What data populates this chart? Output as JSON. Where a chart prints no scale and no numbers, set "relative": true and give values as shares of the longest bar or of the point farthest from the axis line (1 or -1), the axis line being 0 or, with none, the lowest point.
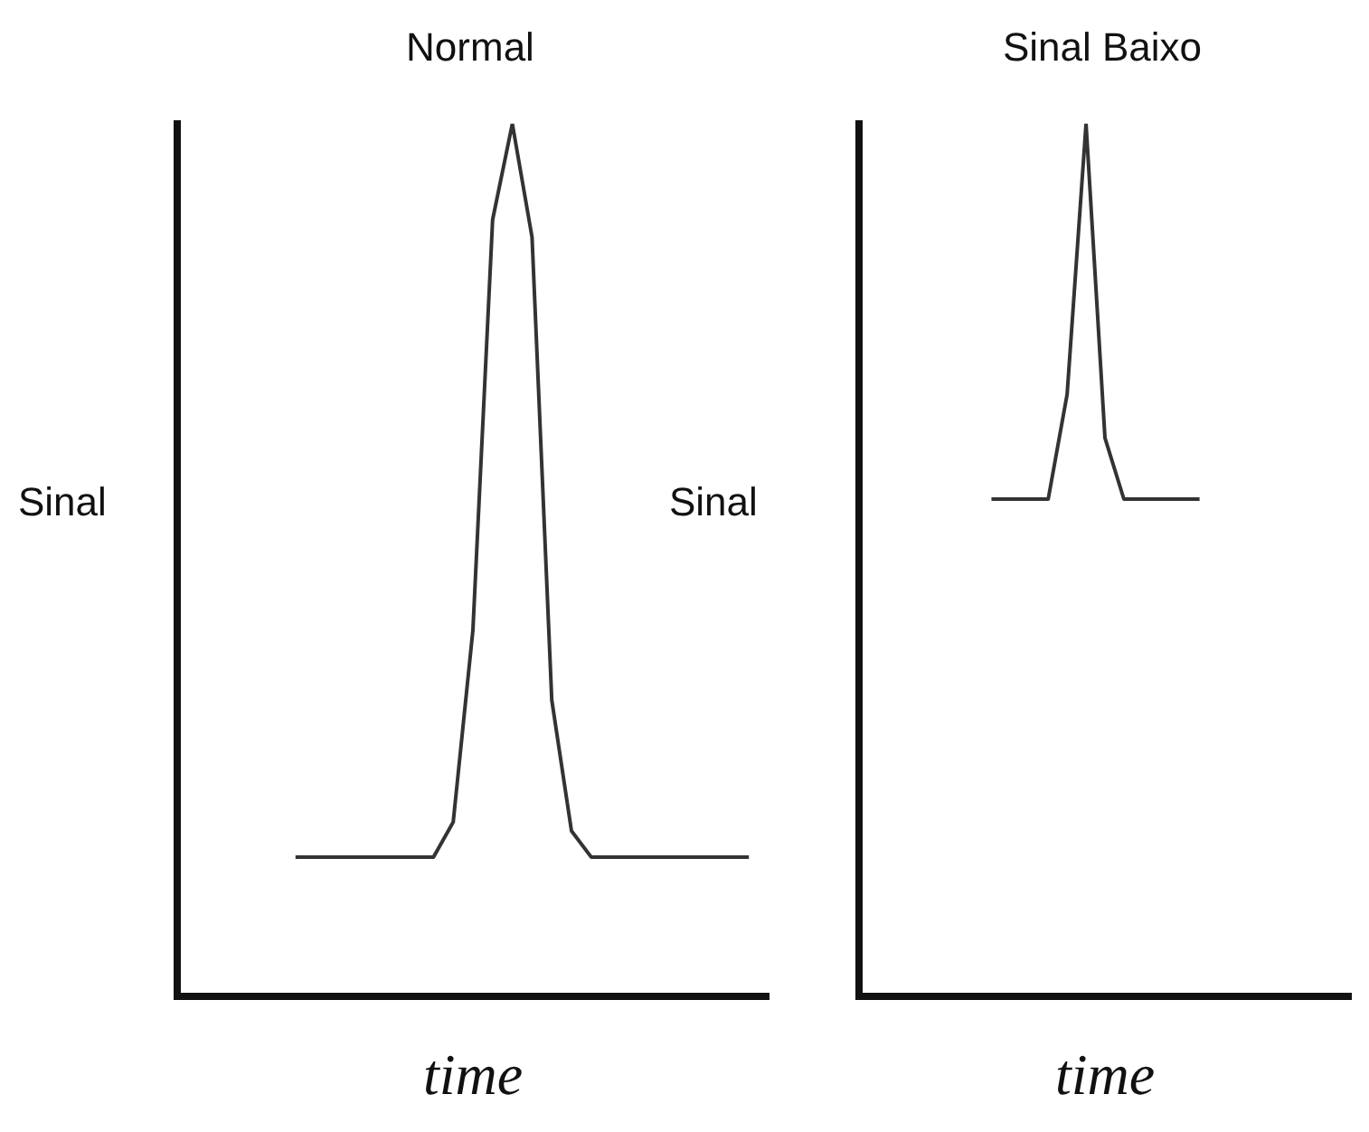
{
  "chart_data": [
    {
      "type": "line",
      "title": "Normal",
      "ylabel": "Sinal",
      "xlabel": "time",
      "relative": true,
      "grid": false,
      "marker": "none",
      "line_style": "solid",
      "categories": [
        null,
        null,
        null,
        null,
        null,
        null,
        null,
        null,
        null,
        null,
        null,
        null,
        null,
        null,
        null,
        null,
        null,
        null,
        null,
        null,
        null,
        null,
        null,
        null,
        null,
        null,
        null,
        null,
        null,
        null,
        null
      ],
      "series": [
        {
          "color": "#333333",
          "values": [
            null,
            null,
            null,
            null,
            null,
            null,
            0.16,
            0.16,
            0.16,
            0.16,
            0.16,
            0.16,
            0.16,
            0.16,
            0.2,
            0.42,
            0.89,
            1,
            0.87,
            0.34,
            0.19,
            0.16,
            0.16,
            0.16,
            0.16,
            0.16,
            0.16,
            0.16,
            0.16,
            0.16,
            null
          ]
        }
      ]
    },
    {
      "type": "line",
      "title": "Sinal Baixo",
      "ylabel": "Sinal",
      "xlabel": "time",
      "relative": true,
      "grid": false,
      "marker": "none",
      "line_style": "solid",
      "categories": [
        null,
        null,
        null,
        null,
        null,
        null,
        null,
        null,
        null,
        null,
        null,
        null,
        null,
        null,
        null,
        null,
        null,
        null,
        null,
        null,
        null,
        null,
        null,
        null,
        null,
        null,
        null
      ],
      "series": [
        {
          "color": "#333333",
          "values": [
            null,
            null,
            null,
            null,
            null,
            null,
            null,
            0.57,
            0.57,
            0.57,
            0.57,
            0.69,
            1,
            0.64,
            0.57,
            0.57,
            0.57,
            0.57,
            0.57,
            null,
            null,
            null,
            null,
            null,
            null,
            null,
            null
          ]
        }
      ]
    }
  ]
}
